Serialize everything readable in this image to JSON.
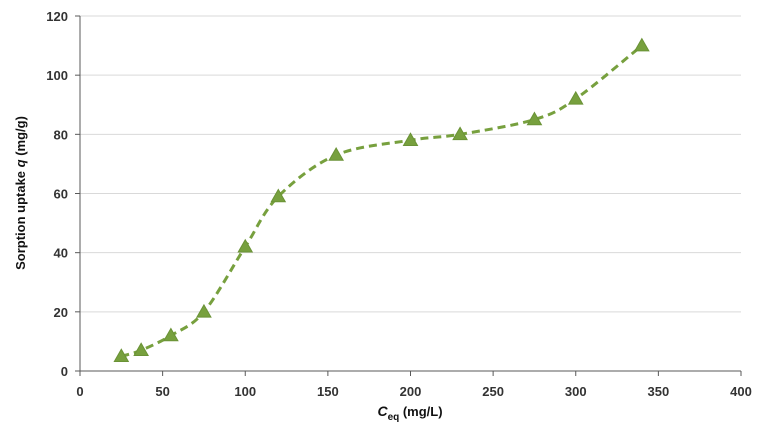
{
  "chart_data": {
    "type": "scatter",
    "title": "",
    "xlabel": {
      "main": "C",
      "sub": "eq",
      "rest": " (mg/L)"
    },
    "ylabel": {
      "pre": "Sorption uptake ",
      "var": "q",
      "post": " (mg/g)"
    },
    "xlim": [
      0,
      400
    ],
    "ylim": [
      0,
      120
    ],
    "x_ticks": [
      "0",
      "50",
      "100",
      "150",
      "200",
      "250",
      "300",
      "350",
      "400"
    ],
    "y_ticks": [
      "0",
      "20",
      "40",
      "60",
      "80",
      "100",
      "120"
    ],
    "grid": "horizontal",
    "legend": "none",
    "marker": "triangle",
    "line_style": "dashed smooth",
    "color": "#77a03e",
    "series": [
      {
        "x": [
          25,
          37,
          55,
          75,
          100,
          120,
          155,
          200,
          230,
          275,
          300,
          340
        ],
        "y": [
          5,
          7,
          12,
          20,
          42,
          59,
          73,
          78,
          80,
          85,
          92,
          110
        ]
      }
    ]
  }
}
